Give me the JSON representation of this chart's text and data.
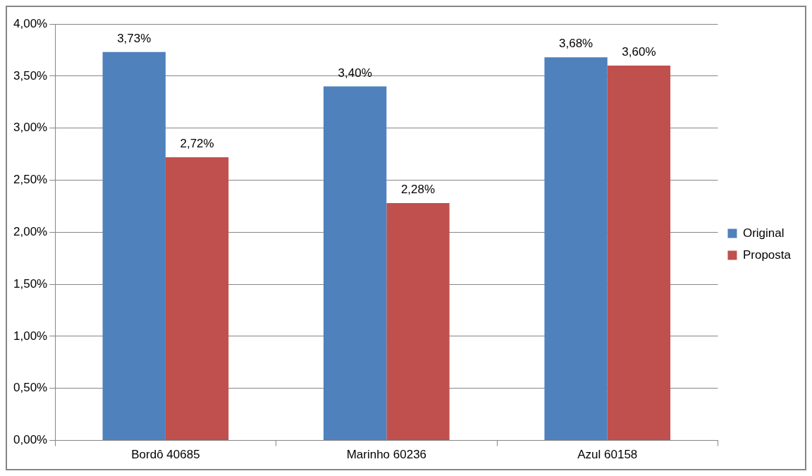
{
  "chart_data": {
    "type": "bar",
    "categories": [
      "Bordô 40685",
      "Marinho 60236",
      "Azul 60158"
    ],
    "series": [
      {
        "name": "Original",
        "color": "#4f81bd",
        "values": [
          3.73,
          3.4,
          3.68
        ],
        "value_labels": [
          "3,73%",
          "3,40%",
          "3,68%"
        ]
      },
      {
        "name": "Proposta",
        "color": "#c0504d",
        "values": [
          2.72,
          2.28,
          3.6
        ],
        "value_labels": [
          "2,72%",
          "2,28%",
          "3,60%"
        ]
      }
    ],
    "ylim": [
      0,
      4
    ],
    "yticks": [
      {
        "value": 0,
        "label": "0,00%"
      },
      {
        "value": 0.5,
        "label": "0,50%"
      },
      {
        "value": 1,
        "label": "1,00%"
      },
      {
        "value": 1.5,
        "label": "1,50%"
      },
      {
        "value": 2,
        "label": "2,00%"
      },
      {
        "value": 2.5,
        "label": "2,50%"
      },
      {
        "value": 3,
        "label": "3,00%"
      },
      {
        "value": 3.5,
        "label": "3,50%"
      },
      {
        "value": 4,
        "label": "4,00%"
      }
    ],
    "grid": "y",
    "legend": "right"
  }
}
